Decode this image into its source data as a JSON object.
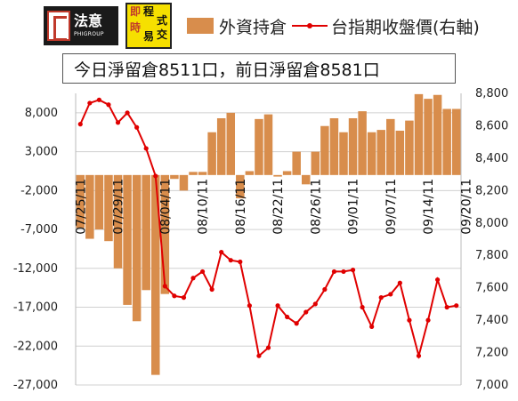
{
  "logos": {
    "logo1_text": "法意",
    "logo1_sub": "PHIGROUP",
    "logo2_chars": [
      "即",
      "程",
      "式",
      "時",
      "易",
      "交"
    ]
  },
  "legend": {
    "bar_label": "外資持倉",
    "line_label": "台指期收盤價(右軸)"
  },
  "subtitle": "今日淨留倉8511口，前日淨留倉8581口",
  "colors": {
    "bar": "#d88d4c",
    "line": "#e00000",
    "grid": "#d0d0d0"
  },
  "chart_data": {
    "type": "bar",
    "title": "",
    "legend_position": "top",
    "grid": true,
    "left_axis": {
      "ylim": [
        -27000,
        10500
      ],
      "ticks": [
        "8,000",
        "3,000",
        "-2,000",
        "-7,000",
        "-12,000",
        "-17,000",
        "-22,000",
        "-27,000"
      ]
    },
    "right_axis": {
      "ylim": [
        7000,
        8800
      ],
      "ticks": [
        "8,800",
        "8,600",
        "8,400",
        "8,200",
        "8,000",
        "7,800",
        "7,600",
        "7,400",
        "7,200",
        "7,000"
      ]
    },
    "x_tick_labels": [
      {
        "index": 0,
        "label": "07/25/11"
      },
      {
        "index": 4,
        "label": "07/29/11"
      },
      {
        "index": 9,
        "label": "08/04/11"
      },
      {
        "index": 13,
        "label": "08/10/11"
      },
      {
        "index": 17,
        "label": "08/16/11"
      },
      {
        "index": 21,
        "label": "08/22/11"
      },
      {
        "index": 25,
        "label": "08/26/11"
      },
      {
        "index": 29,
        "label": "09/01/11"
      },
      {
        "index": 33,
        "label": "09/07/11"
      },
      {
        "index": 37,
        "label": "09/14/11"
      },
      {
        "index": 41,
        "label": "09/20/11"
      }
    ],
    "series": [
      {
        "name": "外資持倉",
        "type": "bar",
        "axis": "left",
        "values": [
          -6800,
          -8200,
          -7000,
          -8500,
          -12000,
          -16700,
          -18800,
          -14800,
          -25700,
          -15300,
          -500,
          -2000,
          400,
          400,
          5500,
          7300,
          8000,
          -3000,
          500,
          7200,
          7800,
          -200,
          500,
          3000,
          -1200,
          3000,
          6300,
          7300,
          5500,
          7300,
          8200,
          5500,
          5800,
          7200,
          5700,
          7000,
          10400,
          9800,
          10300,
          8500,
          8500
        ]
      },
      {
        "name": "台指期收盤價(右軸)",
        "type": "line",
        "axis": "right",
        "values": [
          8610,
          8740,
          8760,
          8730,
          8620,
          8680,
          8590,
          8460,
          8290,
          7610,
          7550,
          7540,
          7660,
          7700,
          7590,
          7820,
          7770,
          7760,
          7490,
          7180,
          7230,
          7490,
          7420,
          7380,
          7450,
          7500,
          7590,
          7700,
          7700,
          7710,
          7480,
          7360,
          7540,
          7560,
          7630,
          7400,
          7180,
          7400,
          7650,
          7480,
          7490
        ]
      }
    ]
  }
}
